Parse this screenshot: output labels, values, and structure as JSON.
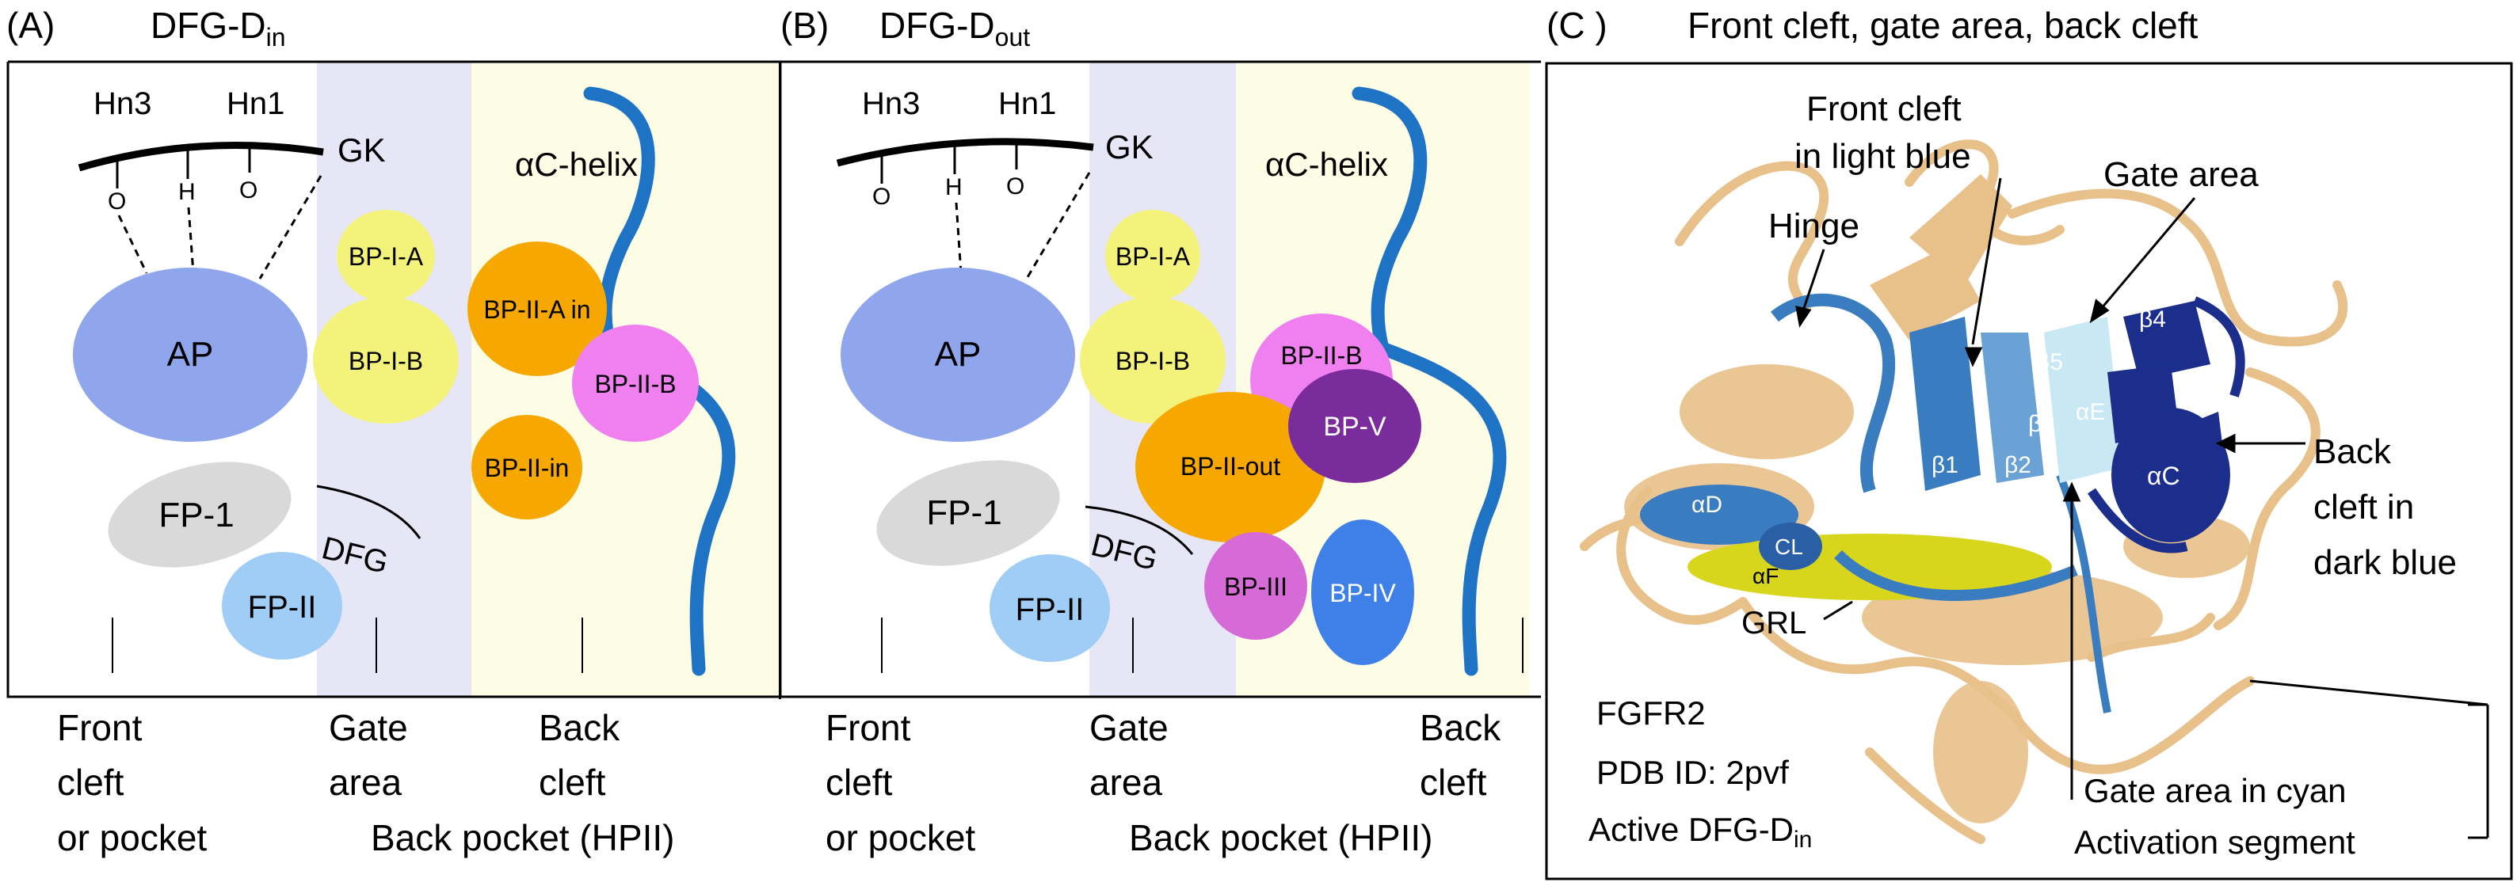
{
  "panel_a": {
    "letter": "(A)",
    "title_main": "DFG-D",
    "title_sub": "in",
    "hn3": "Hn3",
    "hn1": "Hn1",
    "gk": "GK",
    "o1": "O",
    "h": "H",
    "o2": "O",
    "helix": "αC-helix",
    "ap": "AP",
    "fp1": "FP-1",
    "fp2": "FP-II",
    "dfg": "DFG",
    "bp1a": "BP-I-A",
    "bp1b": "BP-I-B",
    "bp2a": "BP-II-A in",
    "bp2b": "BP-II-B",
    "bp2in": "BP-II-in",
    "front": [
      "Front",
      "cleft",
      "or pocket"
    ],
    "gate": [
      "Gate",
      "area"
    ],
    "back": [
      "Back",
      "cleft"
    ],
    "back_pocket": "Back pocket (HPII)"
  },
  "panel_b": {
    "letter": "(B)",
    "title_main": "DFG-D",
    "title_sub": "out",
    "hn3": "Hn3",
    "hn1": "Hn1",
    "gk": "GK",
    "o1": "O",
    "h": "H",
    "o2": "O",
    "helix": "αC-helix",
    "ap": "AP",
    "fp1": "FP-1",
    "fp2": "FP-II",
    "dfg": "DFG",
    "bp1a": "BP-I-A",
    "bp1b": "BP-I-B",
    "bp2b": "BP-II-B",
    "bpv": "BP-V",
    "bp2out": "BP-II-out",
    "bp3": "BP-III",
    "bp4": "BP-IV",
    "front": [
      "Front",
      "cleft",
      "or pocket"
    ],
    "gate": [
      "Gate",
      "area"
    ],
    "back": [
      "Back",
      "cleft"
    ],
    "back_pocket": "Back pocket (HPII)"
  },
  "panel_c": {
    "letter": "(C )",
    "title": "Front cleft, gate area, back cleft",
    "front_cleft": [
      "Front cleft",
      "in light blue"
    ],
    "gate_area": "Gate area",
    "hinge": "Hinge",
    "back_cleft": [
      "Back",
      "cleft in",
      "dark blue"
    ],
    "grl": "GRL",
    "b4": "β4",
    "b5": "β5",
    "b3": "β3",
    "ae": "αE",
    "ac": "αC",
    "b1": "β1",
    "b2": "β2",
    "ad": "αD",
    "cl": "CL",
    "af": "αF",
    "fgfr2": "FGFR2",
    "pdb": "PDB ID: 2pvf",
    "active_main": "Active DFG-D",
    "active_sub": "in",
    "gate_cyan": "Gate area in cyan",
    "activation": "Activation segment"
  },
  "colors": {
    "ap": "#8fa6ec",
    "fp1": "#d9d9d9",
    "fp2": "#9fcdf6",
    "bp1": "#f3f27a",
    "bp2": "#f7a800",
    "bp2b": "#f07ff0",
    "bpv": "#7a2b9c",
    "bp3": "#d66ad6",
    "bp4": "#3f7fe8",
    "helix": "#1f73c4",
    "gate_bg": "#e6e6f7",
    "back_bg": "#fdfde6",
    "tan": "#e8c08a",
    "navy": "#1b2e8c",
    "mid_blue": "#3a7cc0",
    "yellow": "#d8d61c"
  }
}
